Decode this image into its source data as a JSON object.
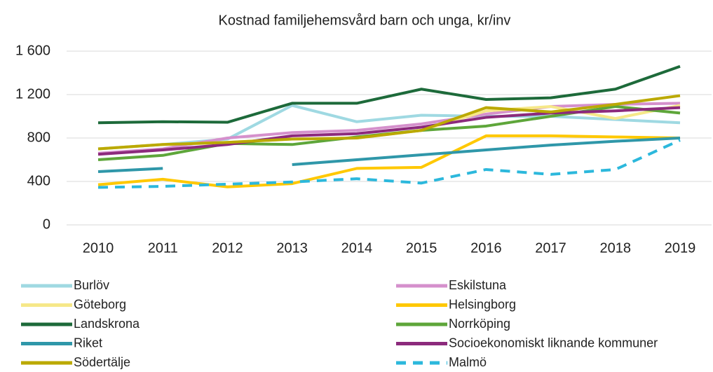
{
  "chart_data": {
    "type": "line",
    "title": "Kostnad familjehemsvård barn och unga, kr/inv",
    "categories": [
      "2010",
      "2011",
      "2012",
      "2013",
      "2014",
      "2015",
      "2016",
      "2017",
      "2018",
      "2019"
    ],
    "ylim": [
      0,
      1600
    ],
    "yticks": [
      0,
      400,
      800,
      {
        "value": 1200,
        "label": "1 200"
      },
      {
        "value": 1600,
        "label": "1 600"
      }
    ],
    "grid": true,
    "series": [
      {
        "name": "Burlöv",
        "color": "#9fd9e2",
        "values": [
          700,
          740,
          790,
          1100,
          950,
          1010,
          1000,
          1000,
          970,
          940
        ]
      },
      {
        "name": "Eskilstuna",
        "color": "#d590cc",
        "values": [
          660,
          700,
          800,
          850,
          870,
          930,
          1020,
          1090,
          1110,
          1120
        ]
      },
      {
        "name": "Göteborg",
        "color": "#f6e889",
        "values": [
          700,
          740,
          760,
          790,
          800,
          870,
          1050,
          1090,
          980,
          1100
        ]
      },
      {
        "name": "Helsingborg",
        "color": "#ffc800",
        "values": [
          370,
          420,
          350,
          380,
          520,
          530,
          820,
          820,
          810,
          800
        ]
      },
      {
        "name": "Landskrona",
        "color": "#1d6a3a",
        "values": [
          940,
          950,
          945,
          1120,
          1120,
          1250,
          1155,
          1170,
          1250,
          1460
        ]
      },
      {
        "name": "Norrköping",
        "color": "#5ea63a",
        "values": [
          600,
          640,
          750,
          740,
          810,
          870,
          910,
          1000,
          1090,
          1030
        ]
      },
      {
        "name": "Riket",
        "color": "#2f97a9",
        "values": [
          490,
          520,
          null,
          555,
          600,
          645,
          690,
          735,
          770,
          800
        ]
      },
      {
        "name": "Socioekonomiskt liknande kommuner",
        "color": "#8c2a7c",
        "values": [
          650,
          690,
          740,
          820,
          840,
          900,
          990,
          1030,
          1050,
          1080
        ]
      },
      {
        "name": "Södertälje",
        "color": "#bba900",
        "values": [
          700,
          740,
          760,
          790,
          800,
          870,
          1080,
          1040,
          1110,
          1190
        ]
      },
      {
        "name": "Malmö",
        "color": "#2cb8dc",
        "dashed": true,
        "values": [
          345,
          355,
          375,
          395,
          425,
          385,
          510,
          465,
          510,
          780
        ]
      }
    ]
  }
}
